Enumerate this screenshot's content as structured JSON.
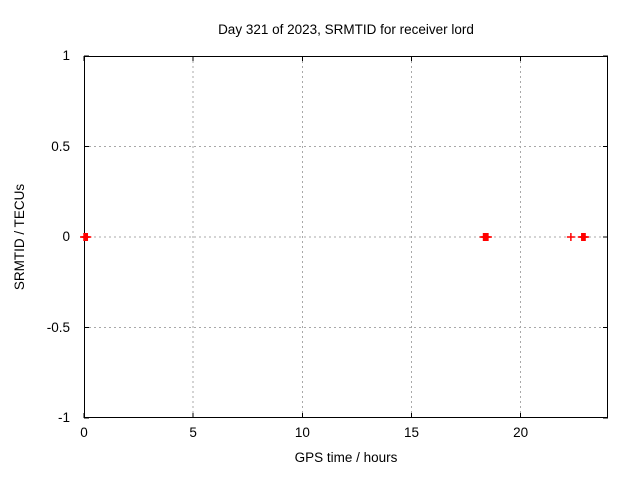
{
  "chart_data": {
    "type": "scatter",
    "title": "Day 321 of 2023, SRMTID for receiver lord",
    "xlabel": "GPS time / hours",
    "ylabel": "SRMTID / TECUs",
    "xlim": [
      0,
      24
    ],
    "ylim": [
      -1,
      1
    ],
    "xticks": [
      0,
      5,
      10,
      15,
      20
    ],
    "yticks": [
      -1,
      -0.5,
      0,
      0.5,
      1
    ],
    "xtick_labels": [
      "0",
      "5",
      "10",
      "15",
      "20"
    ],
    "ytick_labels": [
      "-1",
      "-0.5",
      "0",
      "0.5",
      "1"
    ],
    "grid": true,
    "grid_style": "dashed",
    "legend": false,
    "series": [
      {
        "marker": "plus",
        "color": "#ff0000",
        "x": [
          0.0,
          0.05,
          0.1,
          0.15,
          18.3,
          18.35,
          18.4,
          18.45,
          18.5,
          22.3,
          22.8,
          22.85,
          22.9,
          22.95
        ],
        "y": [
          0,
          0,
          0,
          0,
          0,
          0,
          0,
          0,
          0,
          0,
          0,
          0,
          0,
          0
        ]
      }
    ]
  },
  "colors": {
    "background": "#ffffff",
    "axis": "#000000",
    "grid": "#a8a8a8",
    "marker": "#ff0000",
    "text": "#000000"
  }
}
